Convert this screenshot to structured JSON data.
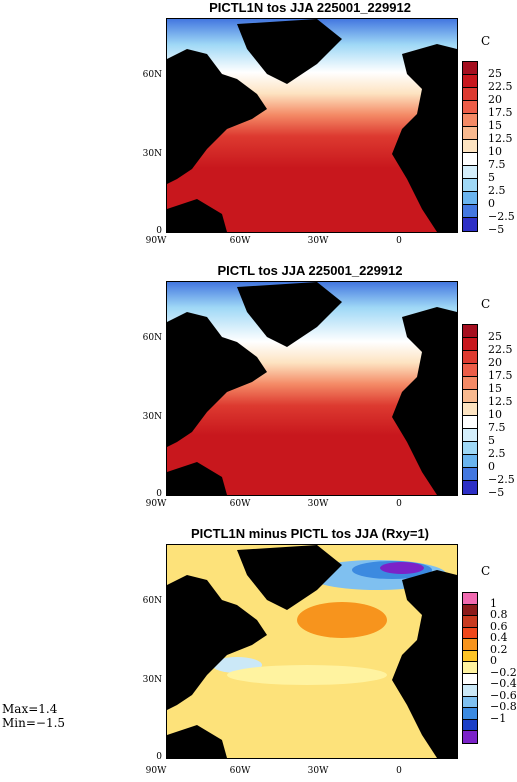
{
  "panels": [
    {
      "title": "PICTL1N tos JJA 225001_229912",
      "unit": "C",
      "lat_ticks": [
        "60N",
        "30N",
        "0"
      ],
      "lon_ticks": [
        "90W",
        "60W",
        "30W",
        "0"
      ],
      "legend_labels": [
        "25",
        "22.5",
        "20",
        "17.5",
        "15",
        "12.5",
        "10",
        "7.5",
        "5",
        "2.5",
        "0",
        "−2.5",
        "−5"
      ],
      "legend_colors": [
        "#a50f1f",
        "#c8171d",
        "#dd3a30",
        "#ec5d48",
        "#f48a66",
        "#f9b98f",
        "#fde3c1",
        "#ffffff",
        "#d4eefb",
        "#9fd8f6",
        "#6ab4ef",
        "#4377e0",
        "#2d2fc5"
      ]
    },
    {
      "title": "PICTL tos JJA 225001_229912",
      "unit": "C",
      "lat_ticks": [
        "60N",
        "30N",
        "0"
      ],
      "lon_ticks": [
        "90W",
        "60W",
        "30W",
        "0"
      ],
      "legend_labels": [
        "25",
        "22.5",
        "20",
        "17.5",
        "15",
        "12.5",
        "10",
        "7.5",
        "5",
        "2.5",
        "0",
        "−2.5",
        "−5"
      ],
      "legend_colors": [
        "#a50f1f",
        "#c8171d",
        "#dd3a30",
        "#ec5d48",
        "#f48a66",
        "#f9b98f",
        "#fde3c1",
        "#ffffff",
        "#d4eefb",
        "#9fd8f6",
        "#6ab4ef",
        "#4377e0",
        "#2d2fc5"
      ]
    },
    {
      "title": "PICTL1N minus PICTL tos JJA (Rxy=1)",
      "unit": "C",
      "lat_ticks": [
        "60N",
        "30N",
        "0"
      ],
      "lon_ticks": [
        "90W",
        "60W",
        "30W",
        "0"
      ],
      "legend_labels": [
        "1",
        "0.8",
        "0.6",
        "0.4",
        "0.2",
        "0",
        "−0.2",
        "−0.4",
        "−0.6",
        "−0.8",
        "−1"
      ],
      "legend_colors": [
        "#f06ab0",
        "#8b1a1a",
        "#c83a1f",
        "#f0471a",
        "#f7941d",
        "#fdc426",
        "#fff3a0",
        "#ffffff",
        "#cbe8f7",
        "#7fc0f0",
        "#3c8ae0",
        "#1b3fc7",
        "#7b22c8"
      ]
    }
  ],
  "stats": {
    "max": "Max=1.4",
    "min": "Min=−1.5"
  },
  "colors": {
    "land": "#000000",
    "warm": "#c8171d",
    "cold": "#4377e0"
  }
}
